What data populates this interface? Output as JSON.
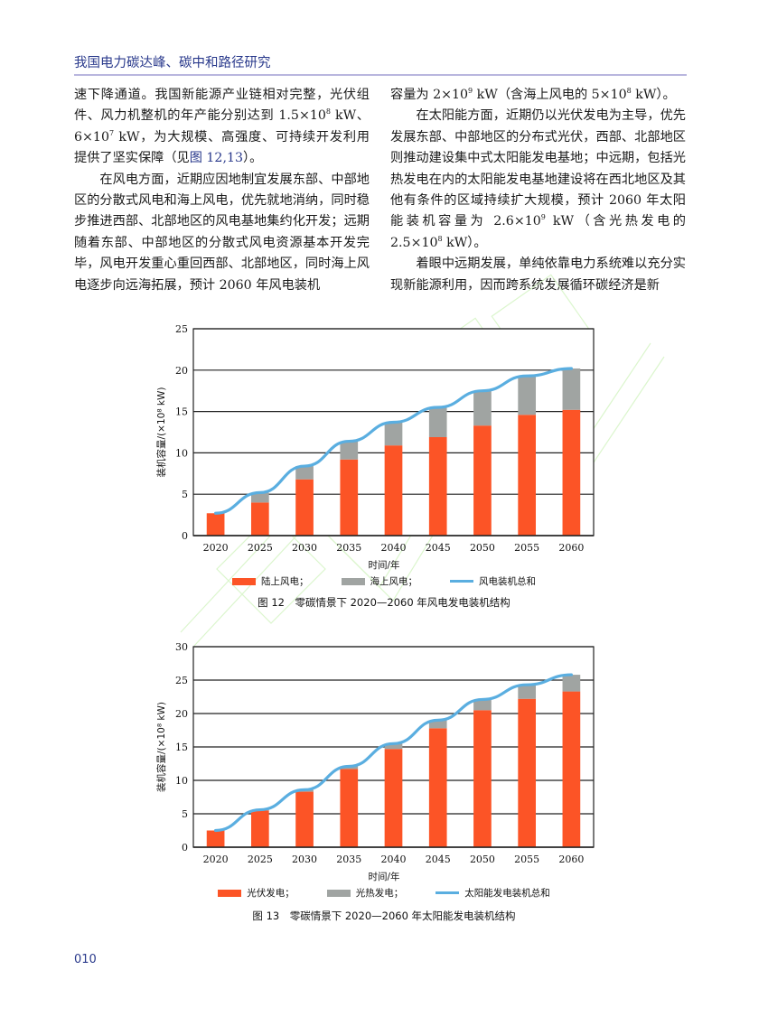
{
  "header": {
    "running_title": "我国电力碳达峰、碳中和路径研究"
  },
  "left_column": {
    "p1_a": "速下降通道。我国新能源产业链相对完整，光伏组件、风力机整机的年产能分别达到 1.5×10",
    "p1_sup1": "8",
    "p1_b": " kW、6×10",
    "p1_sup2": "7",
    "p1_c": " kW，为大规模、高强度、可持续开发利用提供了坚实保障（见",
    "p1_ref": "图 12,13",
    "p1_d": "）。",
    "p2": "在风电方面，近期应因地制宜发展东部、中部地区的分散式风电和海上风电，优先就地消纳，同时稳步推进西部、北部地区的风电基地集约化开发；远期随着东部、中部地区的分散式风电资源基本开发完毕，风电开发重心重回西部、北部地区，同时海上风电逐步向远海拓展，预计 2060 年风电装机"
  },
  "right_column": {
    "p1_a": "容量为 2×10",
    "p1_sup1": "9",
    "p1_b": " kW（含海上风电的 5×10",
    "p1_sup2": "8",
    "p1_c": " kW）。",
    "p2_a": "在太阳能方面，近期仍以光伏发电为主导，优先发展东部、中部地区的分布式光伏，西部、北部地区则推动建设集中式太阳能发电基地；中远期，包括光热发电在内的太阳能发电基地建设将在西北地区及其他有条件的区域持续扩大规模，预计 2060 年太阳能装机容量为 2.6×10",
    "p2_sup1": "9",
    "p2_b": " kW（含光热发电的 2.5×10",
    "p2_sup2": "8",
    "p2_c": " kW）。",
    "p3": "着眼中远期发展，单纯依靠电力系统难以充分实现新能源利用，因而跨系统发展循环碳经济是新"
  },
  "colors": {
    "onshore": "#fc5426",
    "offshore": "#a0a4a2",
    "total_line": "#5aaee0",
    "accent_blue": "#2a3a8c",
    "header_rule": "#b9b6de"
  },
  "chart_data": [
    {
      "type": "bar",
      "stacked": true,
      "title": "图 12　零碳情景下 2020—2060 年风电发电装机结构",
      "xlabel": "时间/年",
      "ylabel": "装机容量/(×10⁸ kW)",
      "ylim": [
        0,
        25
      ],
      "yticks": [
        0,
        5,
        10,
        15,
        20,
        25
      ],
      "grid": true,
      "legend_position": "bottom",
      "categories": [
        "2020",
        "2025",
        "2030",
        "2035",
        "2040",
        "2045",
        "2050",
        "2055",
        "2060"
      ],
      "series": [
        {
          "name": "陆上风电；",
          "kind": "bar",
          "values": [
            2.7,
            4.0,
            6.8,
            9.2,
            10.9,
            11.9,
            13.3,
            14.6,
            15.2
          ]
        },
        {
          "name": "海上风电；",
          "kind": "bar",
          "values": [
            0.0,
            1.2,
            1.6,
            2.2,
            2.8,
            3.6,
            4.2,
            4.7,
            5.0
          ]
        },
        {
          "name": "风电装机总和",
          "kind": "line",
          "values": [
            2.7,
            5.2,
            8.4,
            11.4,
            13.7,
            15.5,
            17.5,
            19.3,
            20.2
          ]
        }
      ]
    },
    {
      "type": "bar",
      "stacked": true,
      "title": "图 13　零碳情景下 2020—2060 年太阳能发电装机结构",
      "xlabel": "时间/年",
      "ylabel": "装机容量/(×10⁸ kW)",
      "ylim": [
        0,
        30
      ],
      "yticks": [
        0,
        5,
        10,
        15,
        20,
        25,
        30
      ],
      "grid": true,
      "legend_position": "bottom",
      "categories": [
        "2020",
        "2025",
        "2030",
        "2035",
        "2040",
        "2045",
        "2050",
        "2055",
        "2060"
      ],
      "series": [
        {
          "name": "光伏发电；",
          "kind": "bar",
          "values": [
            2.5,
            5.5,
            8.3,
            11.7,
            14.7,
            17.8,
            20.5,
            22.2,
            23.3
          ]
        },
        {
          "name": "光热发电；",
          "kind": "bar",
          "values": [
            0.0,
            0.1,
            0.3,
            0.4,
            0.8,
            1.2,
            1.6,
            2.1,
            2.5
          ]
        },
        {
          "name": "太阳能发电装机总和",
          "kind": "line",
          "values": [
            2.5,
            5.6,
            8.6,
            12.1,
            15.5,
            19.0,
            22.1,
            24.3,
            25.8
          ]
        }
      ]
    }
  ],
  "page_number": "010"
}
